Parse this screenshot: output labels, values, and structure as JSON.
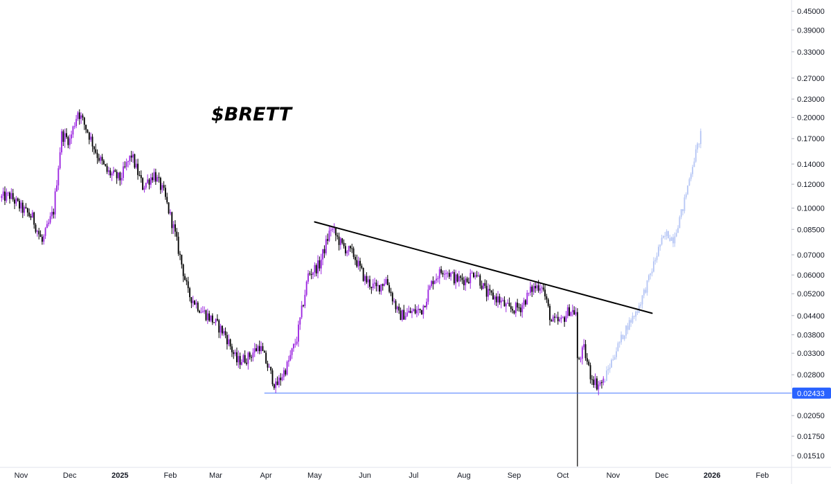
{
  "chart_data": {
    "type": "candlestick",
    "title": "$BRETT",
    "y_scale": "log",
    "ylim": [
      0.0138,
      0.48
    ],
    "y_ticks": [
      "0.45000",
      "0.39000",
      "0.33000",
      "0.27000",
      "0.23000",
      "0.20000",
      "0.17000",
      "0.14000",
      "0.12000",
      "0.10000",
      "0.08500",
      "0.07000",
      "0.06000",
      "0.05200",
      "0.04400",
      "0.03800",
      "0.03300",
      "0.02800",
      "0.02050",
      "0.01750",
      "0.01510"
    ],
    "x_ticks": [
      {
        "label": "Nov",
        "date": "2024-11-01",
        "bold": false
      },
      {
        "label": "Dec",
        "date": "2024-12-01",
        "bold": false
      },
      {
        "label": "2025",
        "date": "2025-01-01",
        "bold": true
      },
      {
        "label": "Feb",
        "date": "2025-02-01",
        "bold": false
      },
      {
        "label": "Mar",
        "date": "2025-03-01",
        "bold": false
      },
      {
        "label": "Apr",
        "date": "2025-04-01",
        "bold": false
      },
      {
        "label": "May",
        "date": "2025-05-01",
        "bold": false
      },
      {
        "label": "Jun",
        "date": "2025-06-01",
        "bold": false
      },
      {
        "label": "Jul",
        "date": "2025-07-01",
        "bold": false
      },
      {
        "label": "Aug",
        "date": "2025-08-01",
        "bold": false
      },
      {
        "label": "Sep",
        "date": "2025-09-01",
        "bold": false
      },
      {
        "label": "Oct",
        "date": "2025-10-01",
        "bold": false
      },
      {
        "label": "Nov",
        "date": "2025-11-01",
        "bold": false
      },
      {
        "label": "Dec",
        "date": "2025-12-01",
        "bold": false
      },
      {
        "label": "2026",
        "date": "2026-01-01",
        "bold": true
      },
      {
        "label": "Feb",
        "date": "2026-02-01",
        "bold": false
      }
    ],
    "xlim": [
      "2024-10-19",
      "2026-02-19"
    ],
    "current_price": {
      "label": "0.02433",
      "value": 0.02433,
      "line_start": "2025-03-31"
    },
    "colors": {
      "up": "#9c27e0",
      "down": "#000000",
      "projection": "#b7c7f5",
      "price_line": "#2962ff",
      "trendline": "#000000"
    },
    "trendline": {
      "from": {
        "date": "2025-05-01",
        "value": 0.09
      },
      "to": {
        "date": "2025-11-25",
        "value": 0.0448
      }
    },
    "spike_low": {
      "date": "2025-10-10",
      "value": 0.0139
    },
    "price_path": [
      [
        "2024-10-19",
        0.108
      ],
      [
        "2024-10-25",
        0.11
      ],
      [
        "2024-11-01",
        0.1
      ],
      [
        "2024-11-08",
        0.093
      ],
      [
        "2024-11-14",
        0.077
      ],
      [
        "2024-11-21",
        0.098
      ],
      [
        "2024-11-26",
        0.175
      ],
      [
        "2024-12-01",
        0.168
      ],
      [
        "2024-12-06",
        0.21
      ],
      [
        "2024-12-12",
        0.18
      ],
      [
        "2024-12-18",
        0.15
      ],
      [
        "2024-12-24",
        0.132
      ],
      [
        "2025-01-01",
        0.125
      ],
      [
        "2025-01-08",
        0.15
      ],
      [
        "2025-01-15",
        0.118
      ],
      [
        "2025-01-22",
        0.13
      ],
      [
        "2025-01-28",
        0.112
      ],
      [
        "2025-02-03",
        0.086
      ],
      [
        "2025-02-07",
        0.069
      ],
      [
        "2025-02-12",
        0.052
      ],
      [
        "2025-02-20",
        0.046
      ],
      [
        "2025-02-28",
        0.042
      ],
      [
        "2025-03-07",
        0.038
      ],
      [
        "2025-03-14",
        0.031
      ],
      [
        "2025-03-21",
        0.032
      ],
      [
        "2025-03-28",
        0.035
      ],
      [
        "2025-04-03",
        0.029
      ],
      [
        "2025-04-07",
        0.0255
      ],
      [
        "2025-04-14",
        0.03
      ],
      [
        "2025-04-20",
        0.037
      ],
      [
        "2025-04-27",
        0.06
      ],
      [
        "2025-05-04",
        0.065
      ],
      [
        "2025-05-11",
        0.086
      ],
      [
        "2025-05-18",
        0.075
      ],
      [
        "2025-05-25",
        0.07
      ],
      [
        "2025-06-01",
        0.058
      ],
      [
        "2025-06-08",
        0.054
      ],
      [
        "2025-06-14",
        0.058
      ],
      [
        "2025-06-22",
        0.044
      ],
      [
        "2025-06-29",
        0.045
      ],
      [
        "2025-07-06",
        0.046
      ],
      [
        "2025-07-13",
        0.058
      ],
      [
        "2025-07-20",
        0.063
      ],
      [
        "2025-07-27",
        0.058
      ],
      [
        "2025-08-03",
        0.058
      ],
      [
        "2025-08-08",
        0.062
      ],
      [
        "2025-08-15",
        0.052
      ],
      [
        "2025-08-22",
        0.05
      ],
      [
        "2025-08-29",
        0.046
      ],
      [
        "2025-09-05",
        0.047
      ],
      [
        "2025-09-12",
        0.054
      ],
      [
        "2025-09-18",
        0.056
      ],
      [
        "2025-09-24",
        0.042
      ],
      [
        "2025-09-30",
        0.042
      ],
      [
        "2025-10-05",
        0.046
      ],
      [
        "2025-10-09",
        0.045
      ],
      [
        "2025-10-10",
        0.031
      ],
      [
        "2025-10-14",
        0.034
      ],
      [
        "2025-10-18",
        0.028
      ],
      [
        "2025-10-22",
        0.026
      ],
      [
        "2025-10-26",
        0.0265
      ]
    ],
    "projection_path": [
      [
        "2025-10-26",
        0.0265
      ],
      [
        "2025-11-02",
        0.033
      ],
      [
        "2025-11-09",
        0.04
      ],
      [
        "2025-11-16",
        0.046
      ],
      [
        "2025-11-23",
        0.058
      ],
      [
        "2025-11-30",
        0.076
      ],
      [
        "2025-12-04",
        0.082
      ],
      [
        "2025-12-08",
        0.079
      ],
      [
        "2025-12-14",
        0.1
      ],
      [
        "2025-12-20",
        0.14
      ],
      [
        "2025-12-25",
        0.175
      ]
    ]
  }
}
